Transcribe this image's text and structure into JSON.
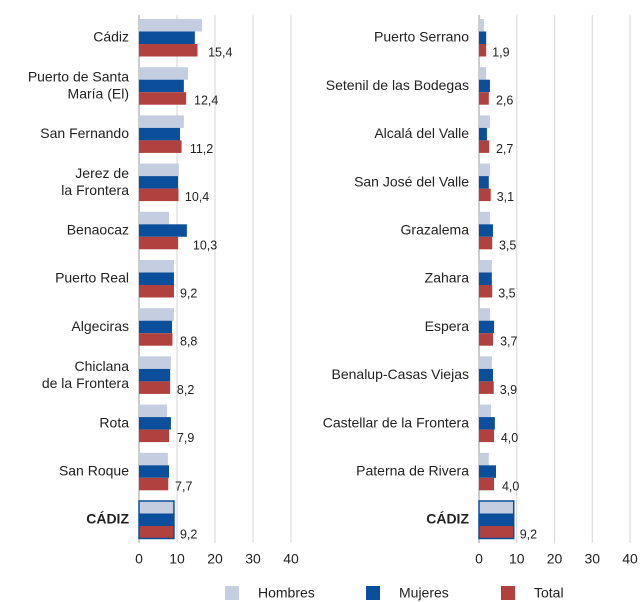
{
  "chart_data": [
    {
      "type": "hbar-grouped",
      "categories": [
        "Cádiz",
        "Puerto de Santa\nMaría (El)",
        "San Fernando",
        "Jerez de\nla Frontera",
        "Benaocaz",
        "Puerto Real",
        "Algeciras",
        "Chiclana\nde la Frontera",
        "Rota",
        "San Roque",
        "CÁDIZ"
      ],
      "highlight": "CÁDIZ",
      "series": [
        {
          "name": "Hombres",
          "color": "#c5cde0",
          "values": [
            16.6,
            12.9,
            11.8,
            10.5,
            7.9,
            9.2,
            9.2,
            8.4,
            7.4,
            7.6,
            9.2
          ]
        },
        {
          "name": "Mujeres",
          "color": "#0b4f9c",
          "values": [
            14.7,
            11.8,
            10.8,
            10.3,
            12.6,
            9.2,
            8.7,
            8.2,
            8.4,
            7.9,
            9.2
          ]
        },
        {
          "name": "Total",
          "color": "#b0413e",
          "values": [
            15.4,
            12.4,
            11.2,
            10.4,
            10.3,
            9.2,
            8.8,
            8.2,
            7.9,
            7.7,
            9.2
          ],
          "value_labels": [
            "15,4",
            "12,4",
            "11,2",
            "10,4",
            "10,3",
            "9,2",
            "8,8",
            "8,2",
            "7,9",
            "7,7",
            "9,2"
          ]
        }
      ],
      "xlim": [
        0,
        40
      ],
      "xticks": [
        0,
        10,
        20,
        30,
        40
      ],
      "grid": true
    },
    {
      "type": "hbar-grouped",
      "categories": [
        "Puerto Serrano",
        "Setenil de las Bodegas",
        "Alcalá del Valle",
        "San José del Valle",
        "Grazalema",
        "Zahara",
        "Espera",
        "Benalup-Casas Viejas",
        "Castellar de la Frontera",
        "Paterna de Rivera",
        "CÁDIZ"
      ],
      "highlight": "CÁDIZ",
      "series": [
        {
          "color": "#c5cde0",
          "values": [
            1.3,
            1.9,
            2.9,
            2.9,
            2.9,
            3.4,
            2.9,
            3.4,
            3.2,
            2.6,
            9.2
          ]
        },
        {
          "color": "#0b4f9c",
          "values": [
            1.9,
            2.9,
            2.1,
            2.6,
            3.7,
            3.4,
            4.0,
            3.7,
            4.2,
            4.5,
            9.2
          ]
        },
        {
          "color": "#b0413e",
          "values": [
            1.9,
            2.6,
            2.7,
            3.1,
            3.5,
            3.5,
            3.7,
            3.9,
            4.0,
            4.0,
            9.2
          ],
          "value_labels": [
            "1,9",
            "2,6",
            "2,7",
            "3,1",
            "3,5",
            "3,5",
            "3,7",
            "3,9",
            "4,0",
            "4,0",
            "9,2"
          ]
        }
      ],
      "xlim": [
        0,
        40
      ],
      "xticks": [
        0,
        10,
        20,
        30,
        40
      ],
      "grid": true
    }
  ]
}
